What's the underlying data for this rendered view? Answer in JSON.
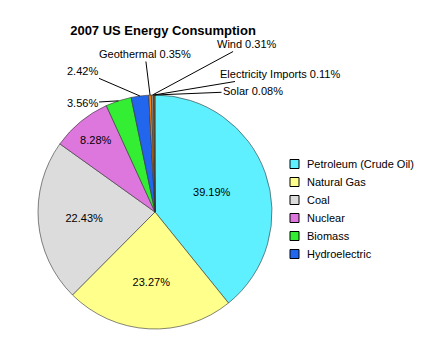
{
  "chart_data": {
    "type": "pie",
    "title": "2007 US Energy Consumption",
    "categories": [
      "Petroleum (Crude Oil)",
      "Natural Gas",
      "Coal",
      "Nuclear",
      "Biomass",
      "Hydroelectric",
      "Geothermal",
      "Wind",
      "Electricity Imports",
      "Solar"
    ],
    "values": [
      39.19,
      23.27,
      22.43,
      8.28,
      3.56,
      2.42,
      0.35,
      0.31,
      0.11,
      0.08
    ],
    "value_labels": [
      "39.19%",
      "23.27%",
      "22.43%",
      "8.28%",
      "3.56%",
      "2.42%",
      "Geothermal 0.35%",
      "Wind 0.31%",
      "Electricity Imports 0.11%",
      "Solar 0.08%"
    ],
    "colors": [
      "#5ef0ff",
      "#ffff8c",
      "#dcdcdc",
      "#dd77dd",
      "#33ee33",
      "#2266ee",
      "#ff8800",
      "#888888",
      "#cc0000",
      "#ffcc00"
    ],
    "data_labels": true,
    "legend": "right"
  }
}
